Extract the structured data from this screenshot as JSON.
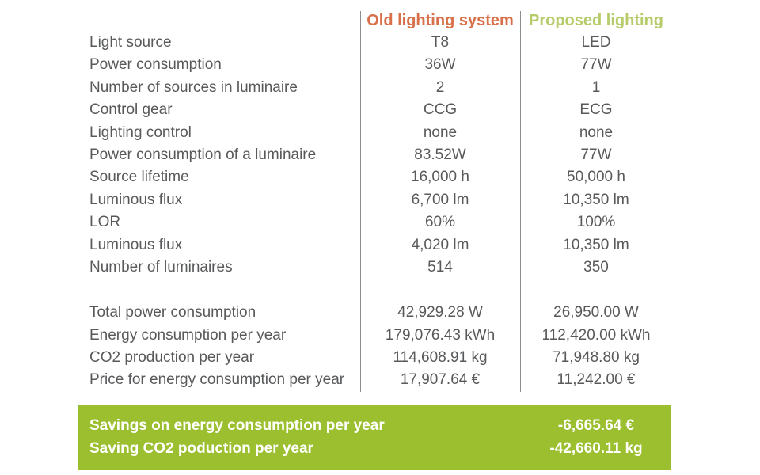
{
  "colors": {
    "old_header": "#d8704a",
    "new_header": "#b6cc6a",
    "text": "#58595b",
    "savings_bg": "#9bbf2f",
    "savings_text": "#ffffff",
    "divider": "#8e8e8e"
  },
  "headers": {
    "old": "Old lighting system",
    "new": "Proposed lighting"
  },
  "rows": [
    {
      "label": "Light source",
      "old": "T8",
      "new": "LED"
    },
    {
      "label": "Power consumption",
      "old": "36W",
      "new": "77W"
    },
    {
      "label": "Number of sources in luminaire",
      "old": "2",
      "new": "1"
    },
    {
      "label": "Control gear",
      "old": "CCG",
      "new": "ECG"
    },
    {
      "label": "Lighting control",
      "old": "none",
      "new": "none"
    },
    {
      "label": "Power consumption of a luminaire",
      "old": "83.52W",
      "new": "77W"
    },
    {
      "label": "Source lifetime",
      "old": "16,000 h",
      "new": "50,000 h"
    },
    {
      "label": "Luminous flux",
      "old": "6,700 lm",
      "new": "10,350 lm"
    },
    {
      "label": "LOR",
      "old": "60%",
      "new": "100%"
    },
    {
      "label": "Luminous flux",
      "old": "4,020 lm",
      "new": "10,350 lm"
    },
    {
      "label": "Number of luminaires",
      "old": "514",
      "new": "350"
    }
  ],
  "totals": [
    {
      "label": "Total power consumption",
      "old": "42,929.28 W",
      "new": "26,950.00 W"
    },
    {
      "label": "Energy consumption per year",
      "old": "179,076.43 kWh",
      "new": "112,420.00 kWh"
    },
    {
      "label": "CO2 production per year",
      "old": "114,608.91 kg",
      "new": "71,948.80 kg"
    },
    {
      "label": "Price for energy consumption per year",
      "old": "17,907.64 €",
      "new": "11,242.00 €"
    }
  ],
  "savings": [
    {
      "label": "Savings on energy consumption per year",
      "value": "-6,665.64 €"
    },
    {
      "label": "Saving CO2 poduction per year",
      "value": "-42,660.11 kg"
    }
  ]
}
